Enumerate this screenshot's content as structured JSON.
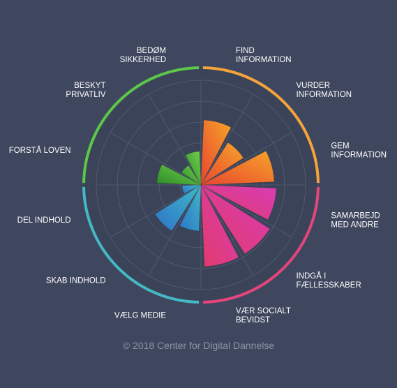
{
  "chart_data": {
    "type": "polar-area",
    "title": "",
    "max_value": 5,
    "grid": true,
    "categories": [
      {
        "label": [
          "FIND",
          "INFORMATION"
        ],
        "value": 3.1,
        "group": "orange"
      },
      {
        "label": [
          "VURDER",
          "INFORMATION"
        ],
        "value": 2.4,
        "group": "orange"
      },
      {
        "label": [
          "GEM",
          "INFORMATION"
        ],
        "value": 3.5,
        "group": "orange"
      },
      {
        "label": [
          "SAMARBEJD",
          "MED ANDRE"
        ],
        "value": 3.6,
        "group": "pink"
      },
      {
        "label": [
          "INDGÅ I",
          "FÆLLESSKABER"
        ],
        "value": 3.9,
        "group": "pink"
      },
      {
        "label": [
          "VÆR SOCIALT",
          "BEVIDST"
        ],
        "value": 3.9,
        "group": "pink"
      },
      {
        "label": [
          "VÆLG MEDIE"
        ],
        "value": 2.2,
        "group": "teal"
      },
      {
        "label": [
          "SKAB INDHOLD"
        ],
        "value": 2.6,
        "group": "teal"
      },
      {
        "label": [
          "DEL INDHOLD"
        ],
        "value": 0.9,
        "group": "teal"
      },
      {
        "label": [
          "FORSTÅ LOVEN"
        ],
        "value": 2.1,
        "group": "green"
      },
      {
        "label": [
          "BESKYT",
          "PRIVATLIV"
        ],
        "value": 1.1,
        "group": "green"
      },
      {
        "label": [
          "BEDØM",
          "SIKKERHED"
        ],
        "value": 1.6,
        "group": "green"
      }
    ],
    "group_colors": {
      "orange": {
        "ring": "#f5a43a",
        "from": "#e8452f",
        "to": "#f6a42a"
      },
      "pink": {
        "ring": "#e4467c",
        "from": "#e33a6a",
        "to": "#d63eb6"
      },
      "teal": {
        "ring": "#44b8c4",
        "from": "#2e74c8",
        "to": "#3fb8c6"
      },
      "green": {
        "ring": "#5cc748",
        "from": "#2c8c2a",
        "to": "#72d04a"
      }
    }
  },
  "footer": {
    "copyright": "© 2018 Center for Digital Dannelse"
  }
}
